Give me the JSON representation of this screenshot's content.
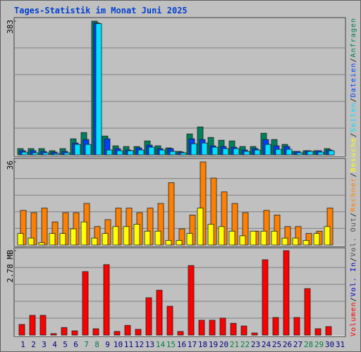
{
  "legend_separator": "/",
  "chart_data": [
    {
      "type": "bar",
      "title": "Tages-Statistik im Monat Juni 2025",
      "categories": [
        "1",
        "2",
        "3",
        "4",
        "5",
        "6",
        "7",
        "8",
        "9",
        "10",
        "11",
        "12",
        "13",
        "14",
        "15",
        "16",
        "17",
        "18",
        "19",
        "20",
        "21",
        "22",
        "23",
        "24",
        "25",
        "26",
        "27",
        "28",
        "29",
        "30",
        "31"
      ],
      "category_colors": [
        "#000080",
        "#000080",
        "#000080",
        "#000080",
        "#000080",
        "#000080",
        "#008040",
        "#008040",
        "#000080",
        "#000080",
        "#000080",
        "#000080",
        "#000080",
        "#008040",
        "#008040",
        "#000080",
        "#000080",
        "#000080",
        "#000080",
        "#000080",
        "#008040",
        "#008040",
        "#000080",
        "#000080",
        "#000080",
        "#000080",
        "#000080",
        "#008040",
        "#008040",
        "#000080",
        "#000080"
      ],
      "ylim": [
        0,
        383
      ],
      "yticks": [
        383
      ],
      "grid": true,
      "series": [
        {
          "name": "Anfragen",
          "color": "#00805c",
          "values": [
            18,
            18,
            18,
            12,
            18,
            46,
            64,
            383,
            54,
            26,
            24,
            24,
            40,
            26,
            20,
            10,
            60,
            80,
            50,
            42,
            40,
            24,
            24,
            62,
            44,
            30,
            10,
            12,
            12,
            18,
            null
          ]
        },
        {
          "name": "Dateien",
          "color": "#0040ff",
          "values": [
            12,
            12,
            10,
            8,
            10,
            34,
            44,
            378,
            46,
            18,
            14,
            20,
            28,
            18,
            18,
            8,
            46,
            44,
            26,
            24,
            22,
            14,
            18,
            44,
            26,
            24,
            10,
            12,
            12,
            14,
            null
          ]
        },
        {
          "name": "Seiten",
          "color": "#00e0ff",
          "values": [
            8,
            6,
            6,
            4,
            6,
            30,
            30,
            376,
            14,
            12,
            12,
            14,
            22,
            14,
            10,
            6,
            32,
            34,
            22,
            18,
            18,
            10,
            14,
            30,
            16,
            16,
            6,
            10,
            8,
            12,
            null
          ]
        }
      ]
    },
    {
      "type": "bar",
      "ylim": [
        0,
        36
      ],
      "yticks": [
        36
      ],
      "grid": true,
      "series": [
        {
          "name": "Rechner",
          "color": "#ff8000",
          "values": [
            15,
            14,
            16,
            10,
            14,
            14,
            18,
            8,
            11,
            16,
            16,
            14,
            16,
            18,
            27,
            7,
            13,
            36,
            29,
            23,
            18,
            14,
            6,
            15,
            13,
            8,
            8,
            5,
            6,
            16,
            null
          ]
        },
        {
          "name": "Besuche",
          "color": "#ffff00",
          "values": [
            5,
            3,
            1,
            5,
            5,
            7,
            10,
            3,
            5,
            8,
            8,
            9,
            6,
            6,
            2,
            2,
            5,
            16,
            9,
            8,
            6,
            4,
            6,
            6,
            6,
            3,
            3,
            2,
            5,
            8,
            null
          ]
        }
      ]
    },
    {
      "type": "bar",
      "ylim": [
        0,
        2.78
      ],
      "yticks": [
        {
          "value": 2.78,
          "label": "2.78 MB"
        }
      ],
      "grid": true,
      "series": [
        {
          "name": "Volumen",
          "color": "#ff0000",
          "values": [
            0.35,
            0.65,
            0.65,
            0.05,
            0.25,
            0.14,
            2.09,
            0.21,
            2.32,
            0.12,
            0.32,
            0.19,
            1.23,
            1.48,
            0.95,
            0.12,
            2.29,
            0.49,
            0.49,
            0.56,
            0.39,
            0.3,
            0.07,
            2.48,
            0.58,
            2.78,
            0.58,
            1.53,
            0.21,
            0.28,
            null
          ]
        },
        {
          "name": "Vol. In",
          "color": "#0000c0",
          "values": [
            null,
            null,
            null,
            null,
            null,
            null,
            null,
            null,
            null,
            null,
            null,
            null,
            null,
            null,
            null,
            null,
            null,
            null,
            null,
            null,
            null,
            null,
            null,
            null,
            null,
            null,
            null,
            null,
            null,
            null,
            null
          ]
        },
        {
          "name": "Vol. Out",
          "color": "#505050",
          "values": [
            null,
            null,
            null,
            null,
            null,
            null,
            null,
            null,
            null,
            null,
            null,
            null,
            null,
            null,
            null,
            null,
            null,
            null,
            null,
            null,
            null,
            null,
            null,
            null,
            null,
            null,
            null,
            null,
            null,
            null,
            null
          ]
        }
      ]
    }
  ]
}
